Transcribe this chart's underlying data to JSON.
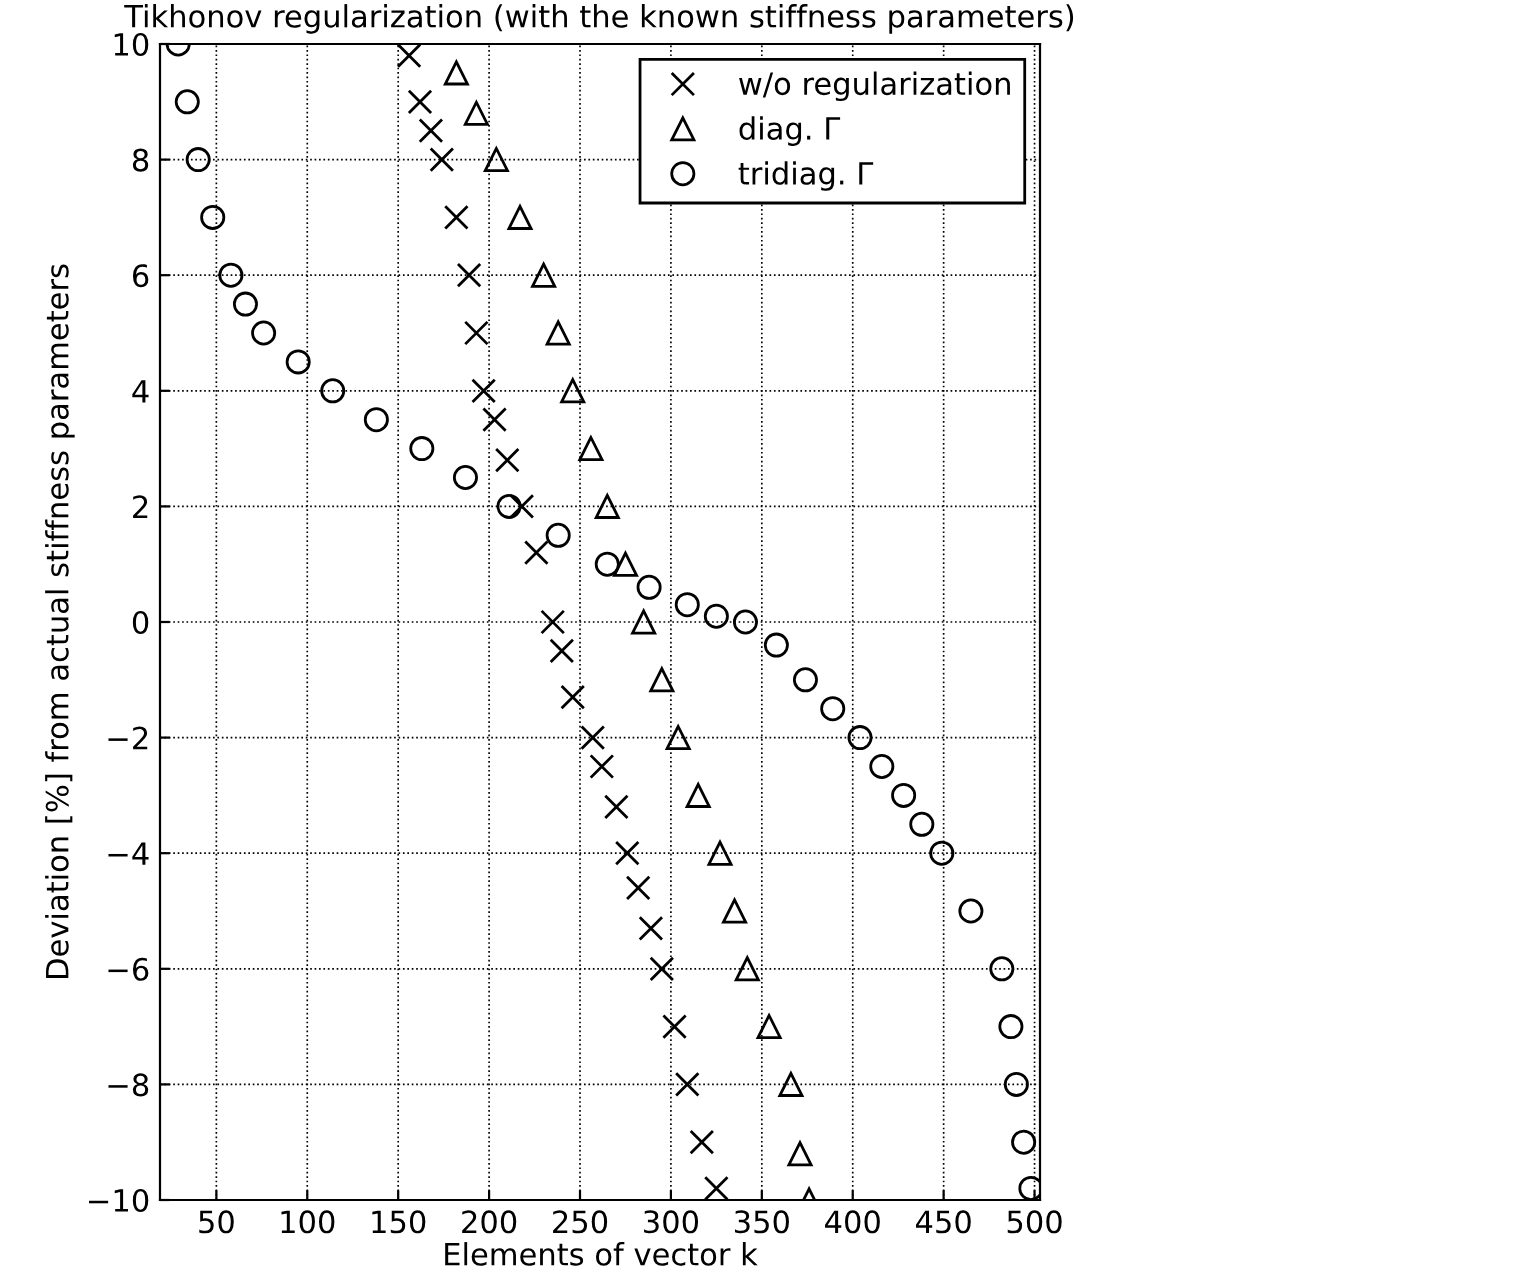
{
  "chart_data": {
    "type": "scatter",
    "title": "Tikhonov regularization (with the known stiffness parameters)",
    "xlabel": "Elements of vector k",
    "ylabel": "Deviation [%] from actual stiffness parameters",
    "xlim": [
      19,
      503
    ],
    "ylim": [
      -10,
      10
    ],
    "xticks": [
      50,
      100,
      150,
      200,
      250,
      300,
      350,
      400,
      450,
      500
    ],
    "yticks": [
      -10,
      -8,
      -6,
      -4,
      -2,
      0,
      2,
      4,
      6,
      8,
      10
    ],
    "grid": true,
    "legend": "top right",
    "series": [
      {
        "name": "w/o regularization",
        "color": "#000000",
        "marker": "cross",
        "x": [
          156,
          162,
          168,
          174,
          182,
          189,
          193,
          197,
          203,
          210,
          218,
          226,
          235,
          240,
          246,
          257,
          262,
          270,
          276,
          282,
          289,
          295,
          302,
          309,
          317,
          325
        ],
        "values": [
          9.8,
          9.0,
          8.5,
          8.0,
          7.0,
          6.0,
          5.0,
          4.0,
          3.5,
          2.8,
          2.0,
          1.2,
          0.0,
          -0.5,
          -1.3,
          -2.0,
          -2.5,
          -3.2,
          -4.0,
          -4.6,
          -5.3,
          -6.0,
          -7.0,
          -8.0,
          -9.0,
          -9.8
        ]
      },
      {
        "name": "diag. Γ",
        "color": "#000000",
        "marker": "triangle",
        "x": [
          182,
          193,
          204,
          217,
          230,
          238,
          246,
          256,
          265,
          275,
          285,
          295,
          304,
          315,
          327,
          335,
          342,
          354,
          366,
          371,
          376
        ],
        "values": [
          9.5,
          8.8,
          8.0,
          7.0,
          6.0,
          5.0,
          4.0,
          3.0,
          2.0,
          1.0,
          0.0,
          -1.0,
          -2.0,
          -3.0,
          -4.0,
          -5.0,
          -6.0,
          -7.0,
          -8.0,
          -9.2,
          -10.0
        ]
      },
      {
        "name": "tridiag. Γ",
        "color": "#000000",
        "marker": "circle",
        "x": [
          29,
          34,
          40,
          48,
          58,
          66,
          76,
          95,
          114,
          138,
          163,
          187,
          211,
          238,
          265,
          288,
          309,
          325,
          341,
          358,
          374,
          389,
          404,
          416,
          428,
          438,
          449,
          465,
          482,
          487,
          490,
          494,
          498
        ],
        "values": [
          10.0,
          9.0,
          8.0,
          7.0,
          6.0,
          5.5,
          5.0,
          4.5,
          4.0,
          3.5,
          3.0,
          2.5,
          2.0,
          1.5,
          1.0,
          0.6,
          0.3,
          0.1,
          0.0,
          -0.4,
          -1.0,
          -1.5,
          -2.0,
          -2.5,
          -3.0,
          -3.5,
          -4.0,
          -5.0,
          -6.0,
          -7.0,
          -8.0,
          -9.0,
          -9.8
        ]
      }
    ]
  }
}
